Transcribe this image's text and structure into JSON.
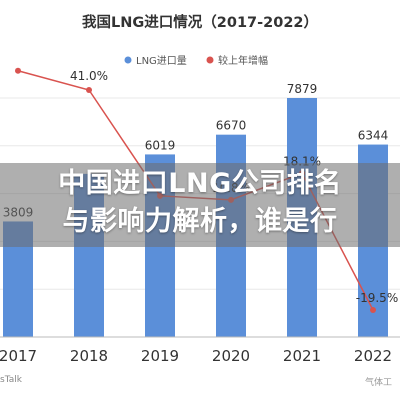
{
  "chart_data": {
    "type": "bar",
    "title": "我国LNG进口情况（2017-2022）",
    "categories": [
      "2017",
      "2018",
      "2019",
      "2020",
      "2021",
      "2022"
    ],
    "series": [
      {
        "name": "LNG进口量",
        "type": "bar",
        "color": "#5b8fd9",
        "values": [
          3809,
          5378,
          6019,
          6670,
          7879,
          6344
        ]
      },
      {
        "name": "较上年增幅",
        "type": "line",
        "color": "#d9534f",
        "values": [
          46.3,
          41.0,
          11.9,
          10.8,
          18.1,
          -19.5
        ]
      }
    ],
    "bar_labels": [
      "3809",
      "",
      "6019",
      "6670",
      "7879",
      "6344"
    ],
    "line_labels": [
      "",
      "41.0%",
      "",
      "10.8%",
      "18.1%",
      "-19.5%"
    ],
    "legend_position": "top",
    "grid": true
  },
  "overlay": {
    "line1": "中国进口LNG公司排名",
    "line2": "与影响力解析，谁是行"
  },
  "source_text": "sTalk",
  "watermark_text": "气体工"
}
